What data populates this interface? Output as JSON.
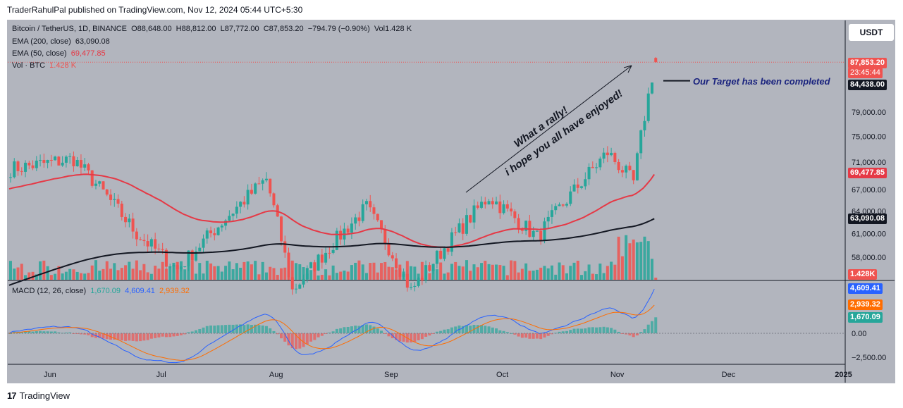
{
  "publisher": "TraderRahulPal published on TradingView.com, Nov 12, 2024 05:44 UTC+5:30",
  "logo_text": "TradingView",
  "currency_button": "USDT",
  "legend": {
    "symbol": "Bitcoin / TetherUS, 1D, BINANCE",
    "open": "O88,648.00",
    "high": "H88,812.00",
    "low": "L87,772.00",
    "close": "C87,853.20",
    "change": "−794.79 (−0.90%)",
    "vol": "Vol1.428 K",
    "ema200_label": "EMA (200, close)",
    "ema200_value": "63,090.08",
    "ema50_label": "EMA (50, close)",
    "ema50_value": "69,477.85",
    "vol_label": "Vol · BTC",
    "vol_value": "1.428 K",
    "macd_label": "MACD (12, 26, close)",
    "macd_hist": "1,670.09",
    "macd_line": "4,609.41",
    "macd_signal": "2,939.32"
  },
  "annotations": {
    "rally_line1": "What a rally!",
    "rally_line2": "i hope you all have enjoyed!",
    "target_text": "Our Target has been completed"
  },
  "badges": {
    "price": "87,853.20",
    "countdown": "23:45:44",
    "target": "84,438.00",
    "ema50": "69,477.85",
    "ema200": "63,090.08",
    "volume": "1.428K",
    "macd_line": "4,609.41",
    "macd_signal": "2,939.32",
    "macd_hist": "1,670.09"
  },
  "colors": {
    "background": "#b2b5be",
    "up": "#26a69a",
    "down": "#ef5350",
    "ema50": "#e53946",
    "ema200": "#131722",
    "macd": "#2962ff",
    "signal": "#ff6d00",
    "annotation": "#1a237e"
  },
  "chart_data": [
    {
      "type": "candlestick",
      "title": "Bitcoin / TetherUS, 1D, BINANCE",
      "x_tick_labels": [
        "Jun",
        "Jul",
        "Aug",
        "Sep",
        "Oct",
        "Nov",
        "Dec",
        "2025"
      ],
      "y_tick_labels": [
        "58,000.00",
        "61,000.00",
        "64,000.00",
        "67,000.00",
        "71,000.00",
        "75,000.00",
        "79,000.00"
      ],
      "ylim": [
        56000,
        90000
      ],
      "price_anchors": [
        {
          "date": "2024-05-21",
          "close": 70000
        },
        {
          "date": "2024-06-07",
          "close": 71500
        },
        {
          "date": "2024-06-24",
          "close": 61000
        },
        {
          "date": "2024-07-05",
          "close": 56500
        },
        {
          "date": "2024-07-29",
          "close": 68500
        },
        {
          "date": "2024-08-05",
          "close": 54000
        },
        {
          "date": "2024-08-25",
          "close": 64500
        },
        {
          "date": "2024-09-06",
          "close": 54000
        },
        {
          "date": "2024-09-27",
          "close": 66000
        },
        {
          "date": "2024-10-10",
          "close": 60500
        },
        {
          "date": "2024-10-29",
          "close": 72500
        },
        {
          "date": "2024-11-05",
          "close": 68000
        },
        {
          "date": "2024-11-11",
          "close": 88648
        }
      ],
      "last_candle": {
        "open": 88648.0,
        "high": 88812.0,
        "low": 87772.0,
        "close": 87853.2
      },
      "ema200_last": 63090.08,
      "ema50_last": 69477.85,
      "target_level": 84438.0,
      "volume_last_k": 1.428
    },
    {
      "type": "line",
      "title": "MACD (12, 26, close)",
      "y_tick_labels": [
        "0.00",
        "−2,500.00"
      ],
      "series": [
        {
          "name": "MACD",
          "last": 4609.41
        },
        {
          "name": "Signal",
          "last": 2939.32
        },
        {
          "name": "Histogram",
          "last": 1670.09
        }
      ]
    }
  ]
}
